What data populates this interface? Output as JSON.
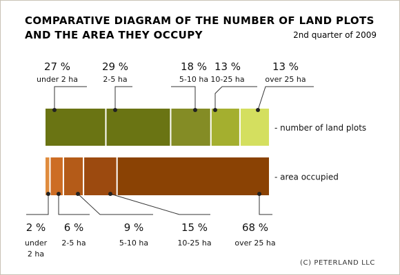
{
  "title": [
    "COMPARATIVE DIAGRAM OF THE NUMBER OF LAND PLOTS",
    "AND THE AREA THEY OCCUPY"
  ],
  "subtitle": "2nd quarter of 2009",
  "credit": "(C) PETERLAND LLC",
  "chart_data": {
    "type": "bar",
    "orientation": "horizontal-stacked-100",
    "categories": [
      "under 2 ha",
      "2-5 ha",
      "5-10 ha",
      "10-25 ha",
      "over 25 ha"
    ],
    "series": [
      {
        "name": "number of land plots",
        "values": [
          27,
          29,
          18,
          13,
          13
        ],
        "labels": [
          "27 %",
          "29 %",
          "18 %",
          "13 %",
          "13 %"
        ],
        "category_labels": [
          [
            "under 2 ha"
          ],
          [
            "2-5 ha"
          ],
          [
            "5-10 ha"
          ],
          [
            "10-25 ha"
          ],
          [
            "over 25 ha"
          ]
        ],
        "colors": [
          "#6a7413",
          "#6a7413",
          "#848c25",
          "#a4af2f",
          "#d4df5f"
        ]
      },
      {
        "name": "area occupied",
        "values": [
          2,
          6,
          9,
          15,
          68
        ],
        "labels": [
          "2 %",
          "6 %",
          "9 %",
          "15 %",
          "68 %"
        ],
        "category_labels": [
          [
            "under",
            "2 ha"
          ],
          [
            "2-5 ha"
          ],
          [
            "5-10 ha"
          ],
          [
            "10-25 ha"
          ],
          [
            "over 25 ha"
          ]
        ],
        "colors": [
          "#e08c3e",
          "#cd6d24",
          "#b45b18",
          "#9c4a0f",
          "#8a4204"
        ]
      }
    ],
    "legend_labels": [
      "-  number of land plots",
      "-      area  occupied"
    ]
  }
}
